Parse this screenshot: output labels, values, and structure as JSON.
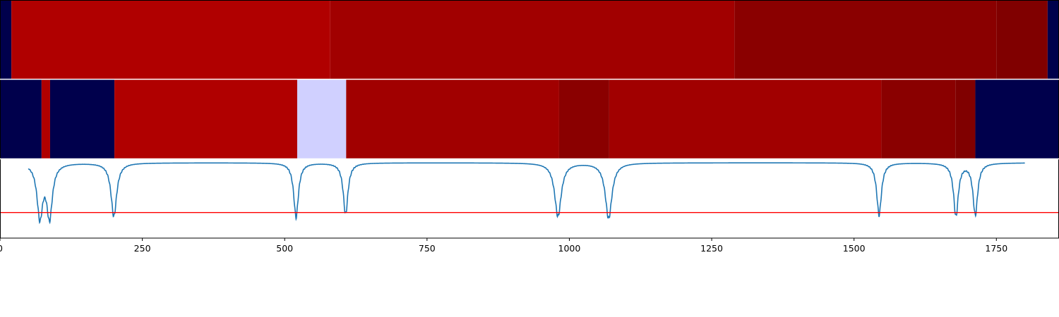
{
  "chart_data": {
    "type": "heatmap",
    "title": "",
    "xlabel": "",
    "ylabel": "",
    "xlim": [
      0,
      1860
    ],
    "x_ticks": [
      "0",
      "250",
      "500",
      "750",
      "1000",
      "1250",
      "1500",
      "1750"
    ],
    "x_tick_values": [
      0,
      250,
      500,
      750,
      1000,
      1250,
      1500,
      1750
    ],
    "colors": {
      "c0": "#00004c",
      "c1": "#b00000",
      "c2": "#a10000",
      "c3": "#8a0000",
      "c4": "#800000",
      "c5": "#d0d0ff",
      "signal": "#1f77b4",
      "threshold": "#ff0000"
    },
    "bands": [
      {
        "row": 1,
        "segments": [
          {
            "x0": 0,
            "x1": 20,
            "color": "c0"
          },
          {
            "x0": 20,
            "x1": 580,
            "color": "c1"
          },
          {
            "x0": 580,
            "x1": 1290,
            "color": "c2"
          },
          {
            "x0": 1290,
            "x1": 1750,
            "color": "c3"
          },
          {
            "x0": 1750,
            "x1": 1840,
            "color": "c4"
          },
          {
            "x0": 1840,
            "x1": 1860,
            "color": "c0"
          }
        ]
      },
      {
        "row": 2,
        "segments": [
          {
            "x0": 0,
            "x1": 73,
            "color": "c0"
          },
          {
            "x0": 73,
            "x1": 88,
            "color": "c1"
          },
          {
            "x0": 88,
            "x1": 201,
            "color": "c0"
          },
          {
            "x0": 201,
            "x1": 522,
            "color": "c1"
          },
          {
            "x0": 522,
            "x1": 608,
            "color": "c5"
          },
          {
            "x0": 608,
            "x1": 982,
            "color": "c2"
          },
          {
            "x0": 982,
            "x1": 1070,
            "color": "c3"
          },
          {
            "x0": 1070,
            "x1": 1548,
            "color": "c2"
          },
          {
            "x0": 1548,
            "x1": 1678,
            "color": "c3"
          },
          {
            "x0": 1678,
            "x1": 1713,
            "color": "c4"
          },
          {
            "x0": 1713,
            "x1": 1860,
            "color": "c0"
          }
        ]
      }
    ],
    "signal": {
      "ylim": [
        -1.05,
        0.05
      ],
      "x_start": 50,
      "x_end": 1800,
      "dips": [
        {
          "x": 70,
          "depth": 0.74,
          "width": 6
        },
        {
          "x": 87,
          "depth": 0.74,
          "width": 6
        },
        {
          "x": 200,
          "depth": 0.75,
          "width": 6
        },
        {
          "x": 520,
          "depth": 0.76,
          "width": 5
        },
        {
          "x": 607,
          "depth": 0.72,
          "width": 5
        },
        {
          "x": 980,
          "depth": 0.75,
          "width": 7
        },
        {
          "x": 1069,
          "depth": 0.78,
          "width": 7
        },
        {
          "x": 1544,
          "depth": 0.73,
          "width": 5
        },
        {
          "x": 1679,
          "depth": 0.74,
          "width": 5
        },
        {
          "x": 1713,
          "depth": 0.72,
          "width": 5
        }
      ],
      "threshold": -0.7
    }
  }
}
